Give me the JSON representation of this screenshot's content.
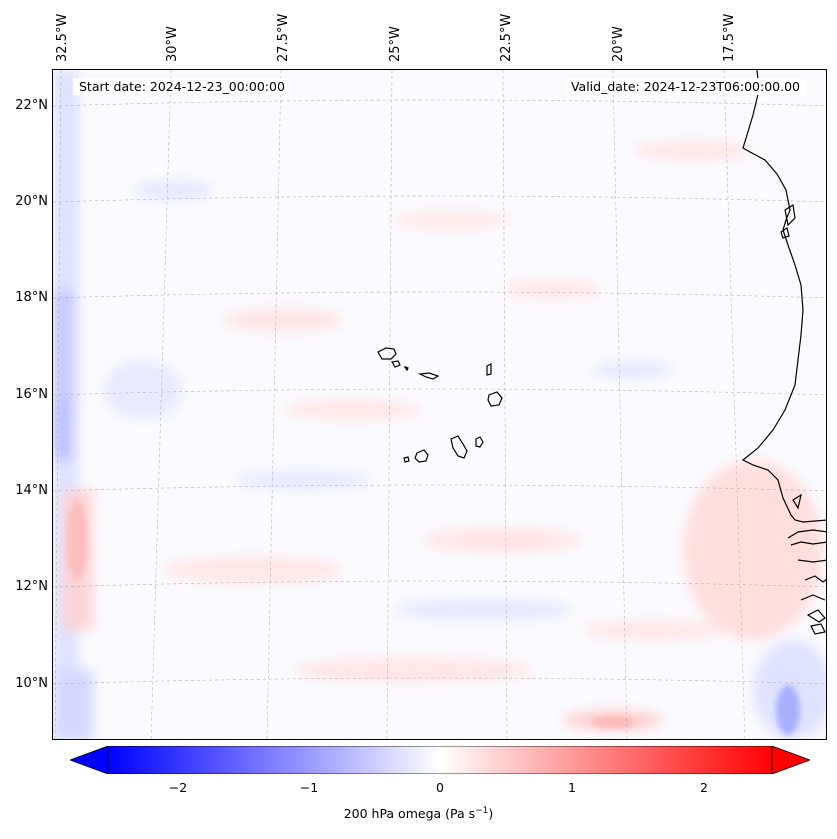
{
  "map": {
    "start_date_text": "Start date: 2024-12-23_00:00:00",
    "valid_date_text": "Valid_date: 2024-12-23T06:00:00.00",
    "lon_labels": [
      "32.5°W",
      "30°W",
      "27.5°W",
      "25°W",
      "22.5°W",
      "20°W",
      "17.5°W"
    ],
    "lat_labels": [
      "22°N",
      "20°N",
      "18°N",
      "16°N",
      "14°N",
      "12°N",
      "10°N"
    ],
    "features": [
      "cape-verde-islands",
      "west-africa-coastline"
    ],
    "field": "200 hPa omega"
  },
  "colorbar": {
    "ticks": [
      "−2",
      "−1",
      "0",
      "1",
      "2"
    ],
    "label_prefix": "200 hPa omega (Pa s",
    "label_sup": "−1",
    "label_suffix": ")",
    "min_color": "#0000ff",
    "mid_color": "#ffffff",
    "max_color": "#ff0000"
  }
}
